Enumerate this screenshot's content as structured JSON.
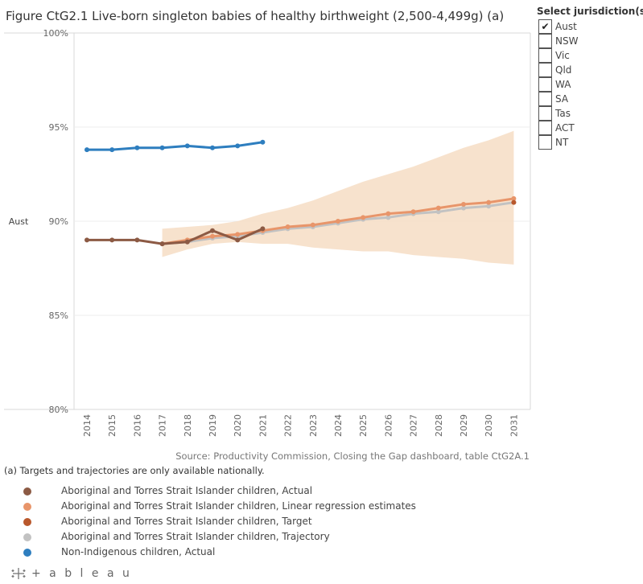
{
  "title": "Figure CtG2.1 Live-born singleton babies of healthy birthweight (2,500-4,499g) (a)",
  "jurisdiction": {
    "heading": "Select jurisdiction(s):",
    "check_mark": "✔",
    "items": [
      {
        "label": "Aust",
        "checked": true
      },
      {
        "label": "NSW",
        "checked": false
      },
      {
        "label": "Vic",
        "checked": false
      },
      {
        "label": "Qld",
        "checked": false
      },
      {
        "label": "WA",
        "checked": false
      },
      {
        "label": "SA",
        "checked": false
      },
      {
        "label": "Tas",
        "checked": false
      },
      {
        "label": "ACT",
        "checked": false
      },
      {
        "label": "NT",
        "checked": false
      }
    ]
  },
  "chart_data": {
    "type": "line",
    "title": "Figure CtG2.1 Live-born singleton babies of healthy birthweight (2,500-4,499g) (a)",
    "row_label": "Aust",
    "xlabel": "",
    "ylabel": "",
    "ylim": [
      80,
      100
    ],
    "y_ticks": [
      80,
      85,
      90,
      95,
      100
    ],
    "y_tick_labels": [
      "80%",
      "85%",
      "90%",
      "95%",
      "100%"
    ],
    "x": [
      2014,
      2015,
      2016,
      2017,
      2018,
      2019,
      2020,
      2021,
      2022,
      2023,
      2024,
      2025,
      2026,
      2027,
      2028,
      2029,
      2030,
      2031
    ],
    "x_tick_labels": [
      "2014",
      "2015",
      "2016",
      "2017",
      "2018",
      "2019",
      "2020",
      "2021",
      "2022",
      "2023",
      "2024",
      "2025",
      "2026",
      "2027",
      "2028",
      "2029",
      "2030",
      "2031"
    ],
    "band": {
      "name": "Linear regression confidence interval",
      "color": "#f6dfc8",
      "x": [
        2017,
        2018,
        2019,
        2020,
        2021,
        2022,
        2023,
        2024,
        2025,
        2026,
        2027,
        2028,
        2029,
        2030,
        2031
      ],
      "upper": [
        89.6,
        89.7,
        89.8,
        90.0,
        90.4,
        90.7,
        91.1,
        91.6,
        92.1,
        92.5,
        92.9,
        93.4,
        93.9,
        94.3,
        94.8
      ],
      "lower": [
        88.1,
        88.5,
        88.8,
        88.9,
        88.8,
        88.8,
        88.6,
        88.5,
        88.4,
        88.4,
        88.2,
        88.1,
        88.0,
        87.8,
        87.7
      ]
    },
    "series": [
      {
        "name": "Aboriginal and Torres Strait Islander children, Trajectory",
        "color": "#c2c2c2",
        "x": [
          2017,
          2018,
          2019,
          2020,
          2021,
          2022,
          2023,
          2024,
          2025,
          2026,
          2027,
          2028,
          2029,
          2030,
          2031
        ],
        "values": [
          88.8,
          88.9,
          89.1,
          89.2,
          89.4,
          89.6,
          89.7,
          89.9,
          90.1,
          90.2,
          90.4,
          90.5,
          90.7,
          90.8,
          91.0
        ]
      },
      {
        "name": "Aboriginal and Torres Strait Islander children, Linear regression estimates",
        "color": "#e8956a",
        "x": [
          2017,
          2018,
          2019,
          2020,
          2021,
          2022,
          2023,
          2024,
          2025,
          2026,
          2027,
          2028,
          2029,
          2030,
          2031
        ],
        "values": [
          88.8,
          89.0,
          89.2,
          89.3,
          89.5,
          89.7,
          89.8,
          90.0,
          90.2,
          90.4,
          90.5,
          90.7,
          90.9,
          91.0,
          91.2
        ]
      },
      {
        "name": "Aboriginal and Torres Strait Islander children, Target",
        "color": "#b9582c",
        "x": [
          2031
        ],
        "values": [
          91.0
        ]
      },
      {
        "name": "Aboriginal and Torres Strait Islander children, Actual",
        "color": "#8c5a44",
        "x": [
          2014,
          2015,
          2016,
          2017,
          2018,
          2019,
          2020,
          2021
        ],
        "values": [
          89.0,
          89.0,
          89.0,
          88.8,
          88.9,
          89.5,
          89.0,
          89.6
        ]
      },
      {
        "name": "Non-Indigenous children, Actual",
        "color": "#2e7ebf",
        "x": [
          2014,
          2015,
          2016,
          2017,
          2018,
          2019,
          2020,
          2021
        ],
        "values": [
          93.8,
          93.8,
          93.9,
          93.9,
          94.0,
          93.9,
          94.0,
          94.2
        ]
      }
    ],
    "legend": [
      {
        "name": "Aboriginal and Torres Strait Islander children, Actual",
        "color": "#8c5a44"
      },
      {
        "name": "Aboriginal and Torres Strait Islander children, Linear regression estimates",
        "color": "#e8956a"
      },
      {
        "name": "Aboriginal and Torres Strait Islander children, Target",
        "color": "#b9582c"
      },
      {
        "name": "Aboriginal and Torres Strait Islander children, Trajectory",
        "color": "#c2c2c2"
      },
      {
        "name": "Non-Indigenous children, Actual",
        "color": "#2e7ebf"
      }
    ],
    "legend_position": "bottom-left",
    "grid": true
  },
  "source": "Source: Productivity Commission, Closing the Gap dashboard, table CtG2A.1",
  "footnote": "(a) Targets and trajectories are only available nationally.",
  "logo": {
    "text": "+ a b l e a u",
    "icon": "tableau-logo-icon"
  }
}
